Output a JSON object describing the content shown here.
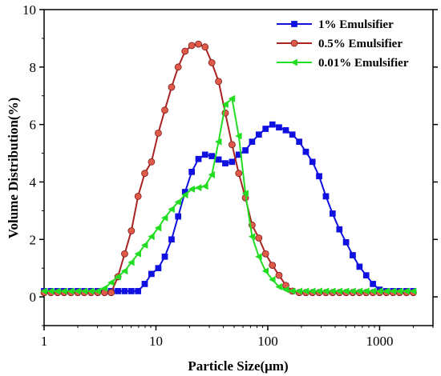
{
  "chart_data": {
    "type": "line",
    "xlabel": "Particle Size(μm)",
    "ylabel": "Volume Distribution(%)",
    "x_scale": "log",
    "xlim": [
      1,
      3000
    ],
    "ylim": [
      -1,
      10
    ],
    "x_ticks": [
      1,
      10,
      100,
      1000
    ],
    "x_tick_labels": [
      "1",
      "10",
      "100",
      "1000"
    ],
    "y_ticks": [
      0,
      2,
      4,
      6,
      8,
      10
    ],
    "y_tick_labels": [
      "0",
      "2",
      "4",
      "6",
      "8",
      "10"
    ],
    "grid": false,
    "legend_position": "top-right",
    "series": [
      {
        "name": "1% Emulsifier",
        "color": "#1010e0",
        "marker": "square",
        "x": [
          1.0,
          1.15,
          1.32,
          1.51,
          1.74,
          2.0,
          2.29,
          2.63,
          3.02,
          3.47,
          3.98,
          4.57,
          5.25,
          6.03,
          6.92,
          7.94,
          9.12,
          10.5,
          12.0,
          13.8,
          15.8,
          18.2,
          20.9,
          24.0,
          27.5,
          31.6,
          36.3,
          41.7,
          47.9,
          55.0,
          63.1,
          72.4,
          83.2,
          95.5,
          110,
          126,
          145,
          166,
          191,
          219,
          251,
          288,
          331,
          380,
          437,
          501,
          575,
          661,
          759,
          871,
          1000,
          1150,
          1320,
          1510,
          1740,
          2000
        ],
        "y": [
          0.2,
          0.2,
          0.2,
          0.2,
          0.2,
          0.2,
          0.2,
          0.2,
          0.2,
          0.2,
          0.2,
          0.2,
          0.2,
          0.2,
          0.2,
          0.45,
          0.8,
          1.0,
          1.4,
          2.0,
          2.8,
          3.65,
          4.35,
          4.8,
          4.95,
          4.9,
          4.78,
          4.65,
          4.7,
          4.95,
          5.1,
          5.4,
          5.65,
          5.85,
          6.0,
          5.9,
          5.8,
          5.65,
          5.4,
          5.05,
          4.7,
          4.2,
          3.5,
          2.9,
          2.35,
          1.9,
          1.45,
          1.05,
          0.75,
          0.45,
          0.25,
          0.2,
          0.2,
          0.2,
          0.2,
          0.2
        ]
      },
      {
        "name": "0.5% Emulsifier",
        "color": "#aa2222",
        "marker": "circle",
        "x": [
          1.0,
          1.15,
          1.32,
          1.51,
          1.74,
          2.0,
          2.29,
          2.63,
          3.02,
          3.47,
          3.98,
          4.57,
          5.25,
          6.03,
          6.92,
          7.94,
          9.12,
          10.5,
          12.0,
          13.8,
          15.8,
          18.2,
          20.9,
          24.0,
          27.5,
          31.6,
          36.3,
          41.7,
          47.9,
          55.0,
          63.1,
          72.4,
          83.2,
          95.5,
          110,
          126,
          145,
          166,
          191,
          219,
          251,
          288,
          331,
          380,
          437,
          501,
          575,
          661,
          759,
          871,
          1000,
          1150,
          1320,
          1510,
          1740,
          2000
        ],
        "y": [
          0.15,
          0.15,
          0.15,
          0.15,
          0.15,
          0.15,
          0.15,
          0.15,
          0.15,
          0.15,
          0.15,
          0.7,
          1.5,
          2.3,
          3.5,
          4.3,
          4.7,
          5.7,
          6.5,
          7.3,
          8.0,
          8.55,
          8.75,
          8.8,
          8.7,
          8.15,
          7.5,
          6.4,
          5.3,
          4.3,
          3.45,
          2.5,
          2.05,
          1.5,
          1.1,
          0.75,
          0.4,
          0.2,
          0.15,
          0.15,
          0.15,
          0.15,
          0.15,
          0.15,
          0.15,
          0.15,
          0.15,
          0.15,
          0.15,
          0.15,
          0.15,
          0.15,
          0.15,
          0.15,
          0.15,
          0.15
        ]
      },
      {
        "name": "0.01% Emulsifier",
        "color": "#22dd22",
        "marker": "triangle-left",
        "x": [
          1.0,
          1.15,
          1.32,
          1.51,
          1.74,
          2.0,
          2.29,
          2.63,
          3.02,
          3.47,
          3.98,
          4.57,
          5.25,
          6.03,
          6.92,
          7.94,
          9.12,
          10.5,
          12.0,
          13.8,
          15.8,
          18.2,
          20.9,
          24.0,
          27.5,
          31.6,
          36.3,
          41.7,
          47.9,
          55.0,
          63.1,
          72.4,
          83.2,
          95.5,
          110,
          126,
          145,
          166,
          191,
          219,
          251,
          288,
          331,
          380,
          437,
          501,
          575,
          661,
          759,
          871,
          1000,
          1150,
          1320,
          1510,
          1740,
          2000
        ],
        "y": [
          0.2,
          0.2,
          0.2,
          0.2,
          0.2,
          0.2,
          0.2,
          0.2,
          0.2,
          0.3,
          0.5,
          0.7,
          0.9,
          1.2,
          1.5,
          1.8,
          2.1,
          2.4,
          2.75,
          3.05,
          3.3,
          3.55,
          3.75,
          3.8,
          3.85,
          4.25,
          5.4,
          6.7,
          6.9,
          5.6,
          3.6,
          2.1,
          1.4,
          0.9,
          0.6,
          0.35,
          0.25,
          0.2,
          0.2,
          0.2,
          0.2,
          0.2,
          0.2,
          0.2,
          0.2,
          0.2,
          0.2,
          0.2,
          0.2,
          0.2,
          0.2,
          0.2,
          0.2,
          0.2,
          0.2,
          0.2
        ]
      }
    ]
  }
}
